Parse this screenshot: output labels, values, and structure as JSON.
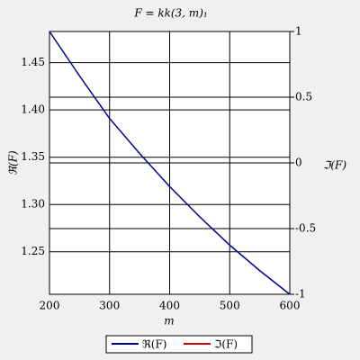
{
  "chart_data": {
    "type": "line",
    "title": "F = kk(3, m)₁",
    "x_label": "m",
    "y_label": "ℜ(F)",
    "y2_label": "ℑ(F)",
    "x": [
      200,
      250,
      300,
      350,
      400,
      450,
      500,
      550,
      600
    ],
    "series": [
      {
        "name": "ℜ(F)",
        "color": "#000099",
        "values": [
          1.483,
          1.436,
          1.391,
          1.354,
          1.319,
          1.287,
          1.257,
          1.23,
          1.205
        ]
      },
      {
        "name": "ℑ(F)",
        "color": "#cc0000",
        "axis": "y2",
        "values": [
          null,
          null,
          null,
          null,
          null,
          null,
          null,
          null,
          null
        ]
      }
    ],
    "xlim": [
      200,
      600
    ],
    "xticks": [
      200,
      300,
      400,
      500,
      600
    ],
    "ylim": [
      1.205,
      1.483
    ],
    "yticks": [
      1.25,
      {
        "value": 1.3,
        "label": "1.30"
      },
      1.35,
      {
        "value": 1.4,
        "label": "1.40"
      },
      1.45
    ],
    "y2lim": [
      -1,
      1
    ],
    "y2ticks": [
      -1,
      -0.5,
      0,
      0.5,
      1
    ],
    "grid": true,
    "legend": "bottom"
  }
}
